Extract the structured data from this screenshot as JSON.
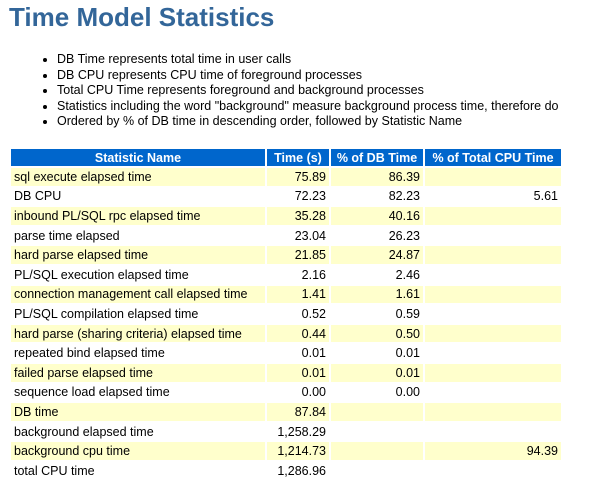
{
  "page": {
    "title": "Time Model Statistics"
  },
  "notes": [
    "DB Time represents total time in user calls",
    "DB CPU represents CPU time of foreground processes",
    "Total CPU Time represents foreground and background processes",
    "Statistics including the word \"background\" measure background process time, therefore do",
    "Ordered by % of DB time in descending order, followed by Statistic Name"
  ],
  "table": {
    "headers": [
      "Statistic Name",
      "Time (s)",
      "% of DB Time",
      "% of Total CPU Time"
    ],
    "rows": [
      [
        "sql execute elapsed time",
        "75.89",
        "86.39",
        ""
      ],
      [
        "DB CPU",
        "72.23",
        "82.23",
        "5.61"
      ],
      [
        "inbound PL/SQL rpc elapsed time",
        "35.28",
        "40.16",
        ""
      ],
      [
        "parse time elapsed",
        "23.04",
        "26.23",
        ""
      ],
      [
        "hard parse elapsed time",
        "21.85",
        "24.87",
        ""
      ],
      [
        "PL/SQL execution elapsed time",
        "2.16",
        "2.46",
        ""
      ],
      [
        "connection management call elapsed time",
        "1.41",
        "1.61",
        ""
      ],
      [
        "PL/SQL compilation elapsed time",
        "0.52",
        "0.59",
        ""
      ],
      [
        "hard parse (sharing criteria) elapsed time",
        "0.44",
        "0.50",
        ""
      ],
      [
        "repeated bind elapsed time",
        "0.01",
        "0.01",
        ""
      ],
      [
        "failed parse elapsed time",
        "0.01",
        "0.01",
        ""
      ],
      [
        "sequence load elapsed time",
        "0.00",
        "0.00",
        ""
      ],
      [
        "DB time",
        "87.84",
        "",
        ""
      ],
      [
        "background elapsed time",
        "1,258.29",
        "",
        ""
      ],
      [
        "background cpu time",
        "1,214.73",
        "",
        "94.39"
      ],
      [
        "total CPU time",
        "1,286.96",
        "",
        ""
      ]
    ]
  },
  "colors": {
    "title": "#336699",
    "header_bg": "#0066cc",
    "header_text": "#ffffff",
    "odd_row_bg": "#ffffcc",
    "even_row_bg": "#ffffff"
  }
}
